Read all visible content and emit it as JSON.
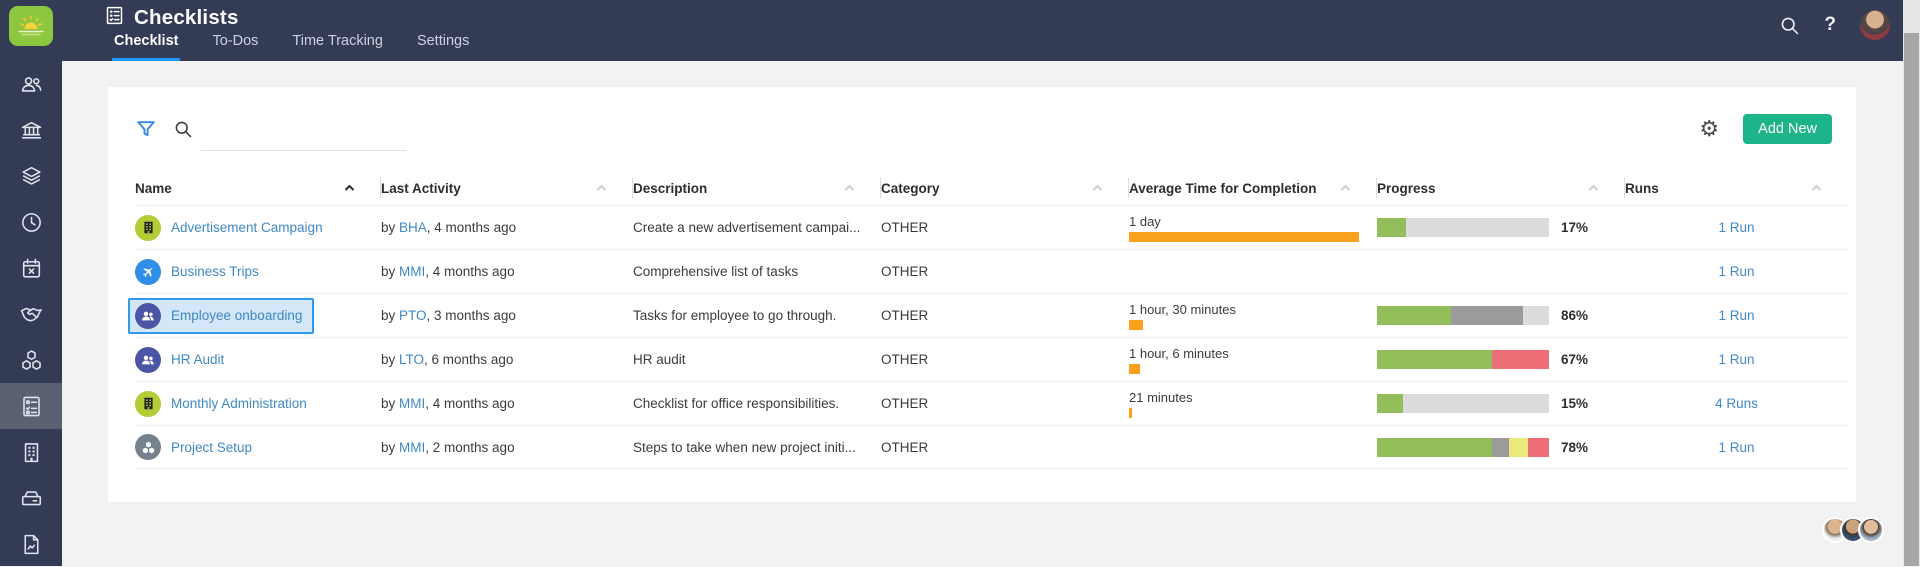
{
  "app": {
    "title": "Checklists",
    "tabs": [
      {
        "label": "Checklist",
        "active": true
      },
      {
        "label": "To-Dos",
        "active": false
      },
      {
        "label": "Time Tracking",
        "active": false
      },
      {
        "label": "Settings",
        "active": false
      }
    ],
    "header_icons": [
      "search-icon",
      "help-icon",
      "user-avatar"
    ]
  },
  "sidebar": {
    "icons": [
      "group",
      "bank",
      "layers",
      "clock",
      "calendar-x",
      "handshake",
      "cubes",
      "checklist",
      "building",
      "drive",
      "file"
    ],
    "active": "checklist"
  },
  "toolbar": {
    "filter_icon": "filter-icon",
    "search_icon": "search-icon",
    "search_value": "",
    "gear_icon": "gear-icon",
    "add_new_label": "Add New"
  },
  "table": {
    "columns": [
      {
        "label": "Name",
        "sorted": true
      },
      {
        "label": "Last Activity",
        "sorted": false
      },
      {
        "label": "Description",
        "sorted": false
      },
      {
        "label": "Category",
        "sorted": false
      },
      {
        "label": "Average Time for Completion",
        "sorted": false
      },
      {
        "label": "Progress",
        "sorted": false
      },
      {
        "label": "Runs",
        "sorted": false
      }
    ],
    "rows": [
      {
        "name": "Advertisement Campaign",
        "icon": {
          "glyph": "building",
          "bg": "#b6cc35",
          "fg": "#1e1e1e"
        },
        "last_activity": {
          "prefix": "by ",
          "user": "BHA",
          "suffix": ", 4 months ago"
        },
        "description": "Create a new advertisement campai...",
        "category": "OTHER",
        "avg_time": {
          "label": "1 day",
          "minutes": 1440
        },
        "progress": {
          "percent": "17%",
          "segments": [
            [
              "green",
              17
            ],
            [
              "track",
              83
            ]
          ]
        },
        "runs": "1 Run",
        "selected": false
      },
      {
        "name": "Business Trips",
        "icon": {
          "glyph": "plane",
          "bg": "#2f8fe8",
          "fg": "#ffffff"
        },
        "last_activity": {
          "prefix": "by ",
          "user": "MMI",
          "suffix": ", 4 months ago"
        },
        "description": "Comprehensive list of tasks",
        "category": "OTHER",
        "avg_time": null,
        "progress": null,
        "runs": "1 Run",
        "selected": false
      },
      {
        "name": "Employee onboarding",
        "icon": {
          "glyph": "people",
          "bg": "#4c55a5",
          "fg": "#ffffff"
        },
        "last_activity": {
          "prefix": "by ",
          "user": "PTO",
          "suffix": ", 3 months ago"
        },
        "description": "Tasks for employee to go through.",
        "category": "OTHER",
        "avg_time": {
          "label": "1 hour, 30 minutes",
          "minutes": 90
        },
        "progress": {
          "percent": "86%",
          "segments": [
            [
              "green",
              43
            ],
            [
              "gray",
              42
            ],
            [
              "track",
              15
            ]
          ]
        },
        "runs": "1 Run",
        "selected": true
      },
      {
        "name": "HR Audit",
        "icon": {
          "glyph": "people",
          "bg": "#4c55a5",
          "fg": "#ffffff"
        },
        "last_activity": {
          "prefix": "by ",
          "user": "LTO",
          "suffix": ", 6 months ago"
        },
        "description": "HR audit",
        "category": "OTHER",
        "avg_time": {
          "label": "1 hour, 6 minutes",
          "minutes": 66
        },
        "progress": {
          "percent": "67%",
          "segments": [
            [
              "green",
              67
            ],
            [
              "red",
              33
            ]
          ]
        },
        "runs": "1 Run",
        "selected": false
      },
      {
        "name": "Monthly Administration",
        "icon": {
          "glyph": "building",
          "bg": "#b6cc35",
          "fg": "#1e1e1e"
        },
        "last_activity": {
          "prefix": "by ",
          "user": "MMI",
          "suffix": ", 4 months ago"
        },
        "description": "Checklist for office responsibilities.",
        "category": "OTHER",
        "avg_time": {
          "label": "21 minutes",
          "minutes": 21
        },
        "progress": {
          "percent": "15%",
          "segments": [
            [
              "green",
              15
            ],
            [
              "track",
              85
            ]
          ]
        },
        "runs": "4 Runs",
        "selected": false
      },
      {
        "name": "Project Setup",
        "icon": {
          "glyph": "cubes",
          "bg": "#75828e",
          "fg": "#ffffff"
        },
        "last_activity": {
          "prefix": "by ",
          "user": "MMI",
          "suffix": ", 2 months ago"
        },
        "description": "Steps to take when new project initi...",
        "category": "OTHER",
        "avg_time": null,
        "progress": {
          "percent": "78%",
          "segments": [
            [
              "green",
              67
            ],
            [
              "gray",
              10
            ],
            [
              "yellow",
              11
            ],
            [
              "red",
              12
            ]
          ]
        },
        "runs": "1 Run",
        "selected": false
      }
    ]
  },
  "footer": {
    "viewer_avatars": 3
  },
  "colors": {
    "header_bg": "#343b55",
    "accent_blue": "#2196f3",
    "link": "#3f88c5",
    "add_new_bg": "#1eb489",
    "avg_bar": "#f9a11c",
    "selected_row_bg": "#d3e7f8",
    "selected_row_border": "#2e9bea",
    "progress": {
      "green": "#92bf5c",
      "gray": "#9b9b9b",
      "track": "#dcdcdc",
      "red": "#ed6e76",
      "yellow": "#eae97c"
    }
  }
}
